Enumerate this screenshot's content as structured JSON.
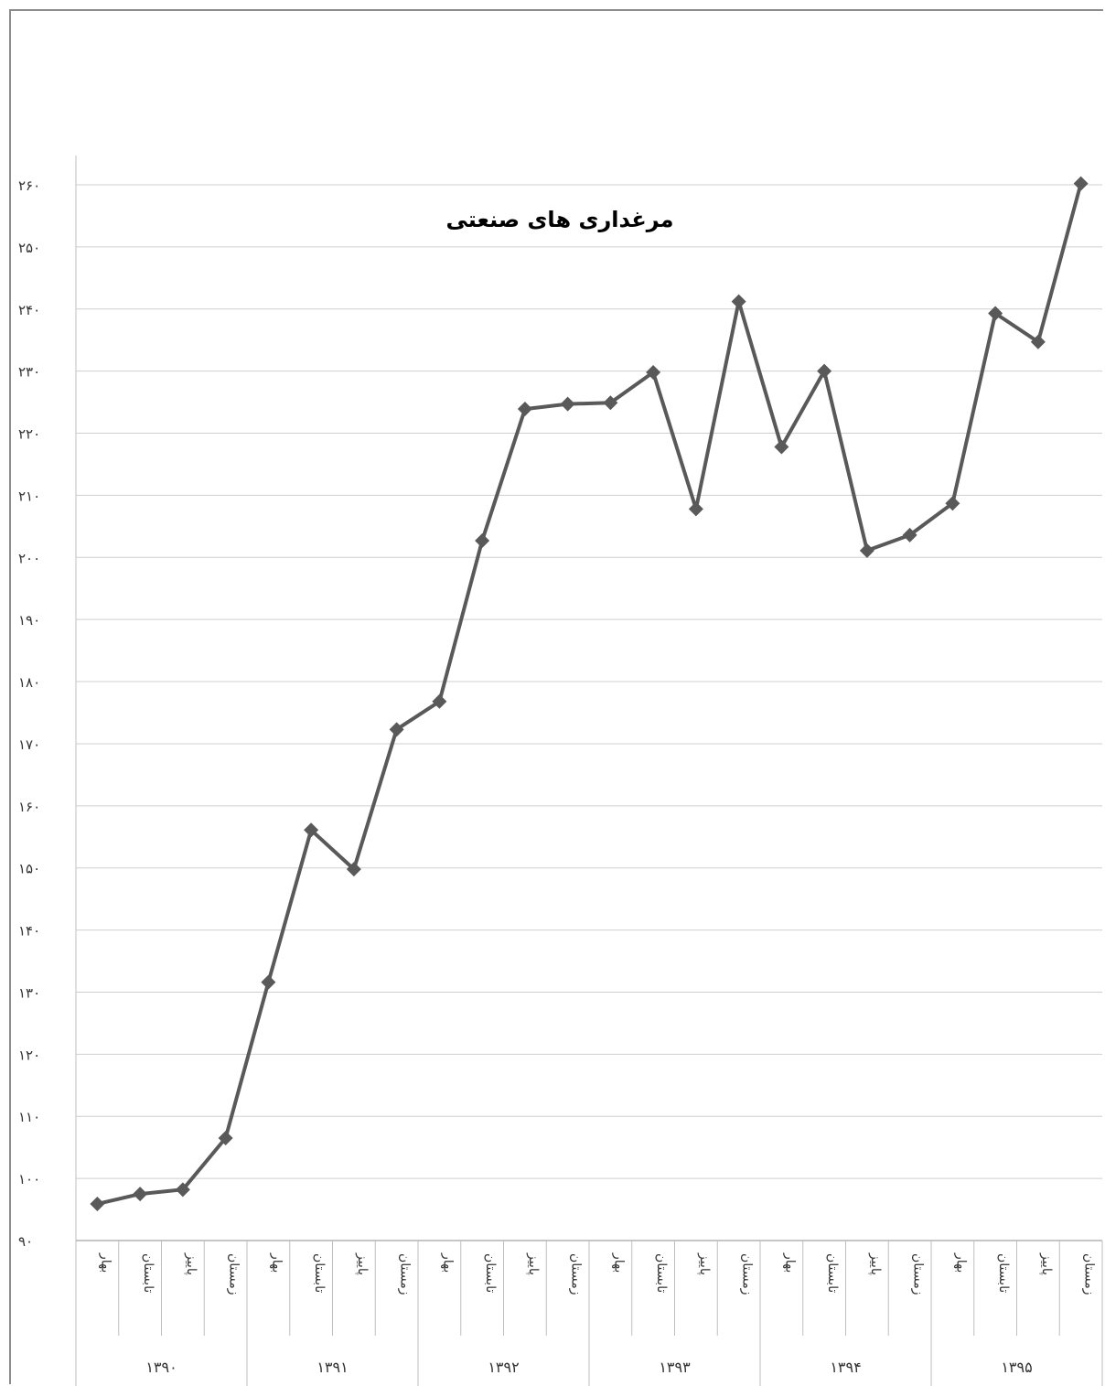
{
  "chart_data": {
    "type": "line",
    "title": "مرغداری های صنعتی",
    "ylim": [
      90,
      260
    ],
    "yticks": [
      "۹۰",
      "۱۰۰",
      "۱۱۰",
      "۱۲۰",
      "۱۳۰",
      "۱۴۰",
      "۱۵۰",
      "۱۶۰",
      "۱۷۰",
      "۱۸۰",
      "۱۹۰",
      "۲۰۰",
      "۲۱۰",
      "۲۲۰",
      "۲۳۰",
      "۲۴۰",
      "۲۵۰",
      "۲۶۰"
    ],
    "ytick_values": [
      90,
      100,
      110,
      120,
      130,
      140,
      150,
      160,
      170,
      180,
      190,
      200,
      210,
      220,
      230,
      240,
      250,
      260
    ],
    "grid": true,
    "line_color": "#595959",
    "years": [
      "۱۳۹۰",
      "۱۳۹۱",
      "۱۳۹۲",
      "۱۳۹۳",
      "۱۳۹۴",
      "۱۳۹۵"
    ],
    "seasons": [
      "بهار",
      "تابستان",
      "پاییز",
      "زمستان"
    ],
    "values": [
      95.9,
      97.5,
      98.2,
      106.5,
      131.6,
      156.1,
      149.8,
      172.3,
      176.8,
      202.7,
      223.9,
      224.7,
      224.9,
      229.8,
      207.8,
      241.2,
      217.8,
      230.0,
      201.1,
      203.6,
      208.7,
      239.3,
      234.7,
      260.2
    ]
  }
}
